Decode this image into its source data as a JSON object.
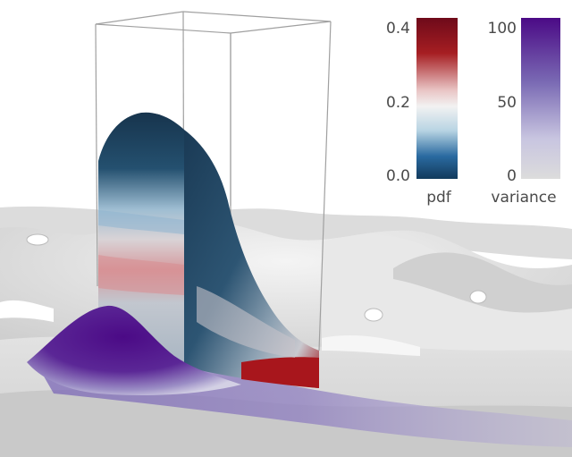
{
  "colorbars": {
    "pdf": {
      "label": "pdf",
      "ticks": [
        "0.4",
        "0.2",
        "0.0"
      ],
      "range": [
        0.0,
        0.4
      ],
      "colors": [
        "#6e0a1a",
        "#a61e22",
        "#e9c5c5",
        "#f2f2f2",
        "#b8d4e3",
        "#2a6aa0",
        "#123a5c"
      ]
    },
    "variance": {
      "label": "variance",
      "ticks": [
        "100",
        "50",
        "0"
      ],
      "range": [
        0,
        100
      ],
      "colors": [
        "#4b0a86",
        "#7a6ab4",
        "#c8c5e0",
        "#dcdcdc"
      ]
    }
  },
  "surface": {
    "highlight_color": "#4b0a86",
    "base_color": "#d8d8d8"
  }
}
